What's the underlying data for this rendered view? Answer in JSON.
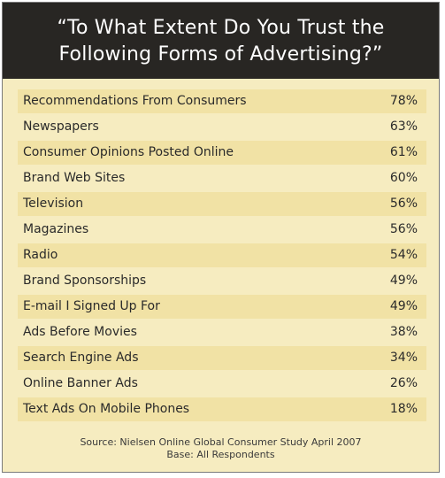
{
  "title_lines": [
    "“To What Extent Do You Trust the",
    "Following Forms of Advertising?”"
  ],
  "colors": {
    "header_bg": "#282623",
    "panel_bg": "#f6ecc0",
    "row_shade": "#f1e2a5",
    "text": "#2a2a2a"
  },
  "chart_data": {
    "type": "table",
    "title": "“To What Extent Do You Trust the Following Forms of Advertising?”",
    "columns": [
      "",
      ""
    ],
    "rows": [
      {
        "label": "Recommendations From Consumers",
        "value": "78%"
      },
      {
        "label": "Newspapers",
        "value": "63%"
      },
      {
        "label": "Consumer Opinions Posted Online",
        "value": "61%"
      },
      {
        "label": "Brand Web Sites",
        "value": "60%"
      },
      {
        "label": "Television",
        "value": "56%"
      },
      {
        "label": "Magazines",
        "value": "56%"
      },
      {
        "label": "Radio",
        "value": "54%"
      },
      {
        "label": "Brand Sponsorships",
        "value": "49%"
      },
      {
        "label": "E-mail I Signed Up For",
        "value": "49%"
      },
      {
        "label": "Ads Before Movies",
        "value": "38%"
      },
      {
        "label": "Search Engine Ads",
        "value": "34%"
      },
      {
        "label": "Online Banner Ads",
        "value": "26%"
      },
      {
        "label": "Text Ads On Mobile Phones",
        "value": "18%"
      }
    ]
  },
  "footer": {
    "source": "Source: Nielsen Online Global Consumer Study April 2007",
    "base": "Base: All Respondents"
  }
}
